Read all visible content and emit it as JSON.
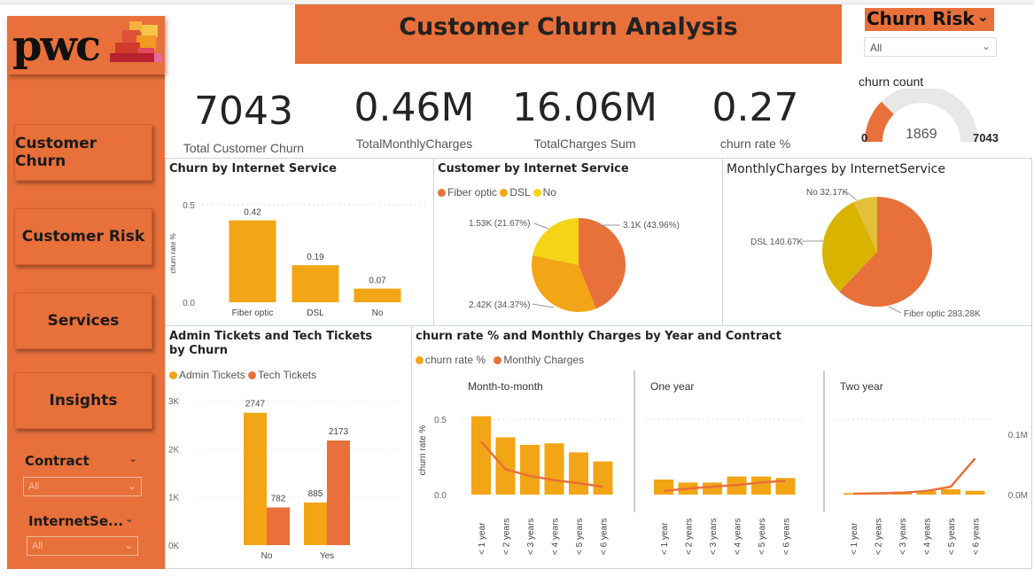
{
  "colors": {
    "accent": "#e8703a",
    "amber": "#f2a515",
    "orange": "#e8703a",
    "yellow": "#f5d418",
    "mustard": "#d8b400",
    "lightMustard": "#e2c03a"
  },
  "logo": {
    "text": "pwc"
  },
  "sidebar": {
    "nav": [
      {
        "label": "Customer Churn"
      },
      {
        "label": "Customer Risk"
      },
      {
        "label": "Services"
      },
      {
        "label": "Insights"
      }
    ],
    "slicers": [
      {
        "title": "Contract",
        "value": "All"
      },
      {
        "title": "InternetSe...",
        "value": "All"
      }
    ]
  },
  "header": {
    "title": "Customer Churn Analysis"
  },
  "churnRisk": {
    "title": "Churn Risk",
    "value": "All"
  },
  "kpis": [
    {
      "value": "7043",
      "label": "Total Customer Churn"
    },
    {
      "value": "0.46M",
      "label": "TotalMonthlyCharges"
    },
    {
      "value": "16.06M",
      "label": "TotalCharges Sum"
    },
    {
      "value": "0.27",
      "label": "churn rate %"
    }
  ],
  "gauge": {
    "title": "churn count",
    "min": "0",
    "value": "1869",
    "max": "7043"
  },
  "chart_data": [
    {
      "id": "churnByInternet",
      "type": "bar",
      "title": "Churn by Internet Service",
      "ylabel": "churn rate %",
      "yticks": [
        "0.5",
        "0.0"
      ],
      "ylim": [
        0,
        0.5
      ],
      "categories": [
        "Fiber optic",
        "DSL",
        "No"
      ],
      "values": [
        0.42,
        0.19,
        0.07
      ],
      "labels": [
        "0.42",
        "0.19",
        "0.07"
      ]
    },
    {
      "id": "customerByInternet",
      "type": "pie",
      "title": "Customer by Internet Service",
      "legend": [
        "Fiber optic",
        "DSL",
        "No"
      ],
      "slices": [
        {
          "name": "Fiber optic",
          "value": 43.96,
          "label": "3.1K (43.96%)"
        },
        {
          "name": "DSL",
          "value": 34.37,
          "label": "2.42K (34.37%)"
        },
        {
          "name": "No",
          "value": 21.67,
          "label": "1.53K (21.67%)"
        }
      ]
    },
    {
      "id": "monthlyByInternet",
      "type": "pie",
      "title": "MonthlyCharges by InternetService",
      "slices": [
        {
          "name": "Fiber optic",
          "value": 283.28,
          "label": "Fiber optic 283.28K"
        },
        {
          "name": "DSL",
          "value": 140.67,
          "label": "DSL 140.67K"
        },
        {
          "name": "No",
          "value": 32.17,
          "label": "No 32.17K"
        }
      ]
    },
    {
      "id": "ticketsByChurn",
      "type": "bar",
      "title": "Admin Tickets and Tech Tickets by Churn",
      "legend": [
        "Admin Tickets",
        "Tech Tickets"
      ],
      "yticks": [
        "3K",
        "2K",
        "1K",
        "0K"
      ],
      "ylim": [
        0,
        3000
      ],
      "categories": [
        "No",
        "Yes"
      ],
      "series": [
        {
          "name": "Admin Tickets",
          "values": [
            2747,
            885
          ]
        },
        {
          "name": "Tech Tickets",
          "values": [
            782,
            2173
          ]
        }
      ]
    },
    {
      "id": "churnByYearContract",
      "type": "bar",
      "title": "churn rate % and Monthly Charges by Year and Contract",
      "legend": [
        "churn rate %",
        "Monthly Charges"
      ],
      "ylabel": "churn rate %",
      "yticks_left": [
        "0.5",
        "0.0"
      ],
      "yticks_right": [
        "0.1M",
        "0.0M"
      ],
      "categories": [
        "< 1 year",
        "< 2 years",
        "< 3 years",
        "< 4 years",
        "< 5 years",
        "< 6 years"
      ],
      "panels": [
        {
          "name": "Month-to-month",
          "churn": [
            0.52,
            0.38,
            0.33,
            0.34,
            0.28,
            0.22
          ],
          "monthly": [
            0.088,
            0.042,
            0.031,
            0.024,
            0.019,
            0.013
          ]
        },
        {
          "name": "One year",
          "churn": [
            0.1,
            0.08,
            0.08,
            0.12,
            0.12,
            0.11
          ],
          "monthly": [
            0.006,
            0.01,
            0.013,
            0.016,
            0.02,
            0.023
          ]
        },
        {
          "name": "Two year",
          "churn": [
            0.01,
            0.015,
            0.02,
            0.025,
            0.035,
            0.025
          ],
          "monthly": [
            0.0015,
            0.002,
            0.003,
            0.006,
            0.013,
            0.06
          ]
        }
      ]
    }
  ]
}
